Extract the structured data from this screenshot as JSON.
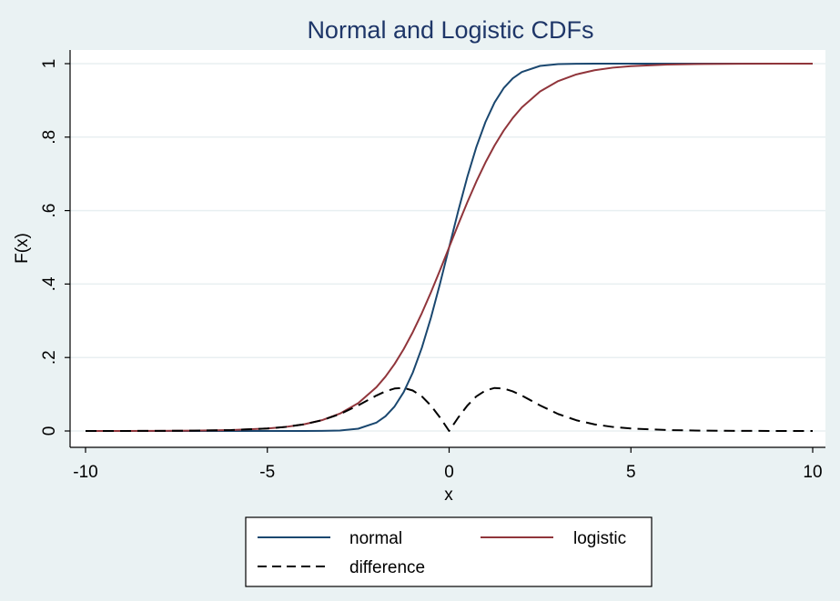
{
  "chart_data": {
    "type": "line",
    "title": "Normal and Logistic CDFs",
    "xlabel": "x",
    "ylabel": "F(x)",
    "xlim": [
      -10,
      10
    ],
    "ylim": [
      0,
      1
    ],
    "x_ticks": [
      -10,
      -5,
      0,
      5,
      10
    ],
    "x_tick_labels": [
      "-10",
      "-5",
      "0",
      "5",
      "10"
    ],
    "y_ticks": [
      0,
      0.2,
      0.4,
      0.6,
      0.8,
      1
    ],
    "y_tick_labels": [
      "0",
      ".2",
      ".4",
      ".6",
      ".8",
      "1"
    ],
    "grid": true,
    "legend_position": "bottom",
    "x": [
      -10,
      -9,
      -8,
      -7,
      -6,
      -5,
      -4.5,
      -4,
      -3.5,
      -3,
      -2.5,
      -2,
      -1.75,
      -1.5,
      -1.25,
      -1,
      -0.75,
      -0.5,
      -0.25,
      0,
      0.25,
      0.5,
      0.75,
      1,
      1.25,
      1.5,
      1.75,
      2,
      2.5,
      3,
      3.5,
      4,
      4.5,
      5,
      6,
      7,
      8,
      9,
      10
    ],
    "series": [
      {
        "name": "normal",
        "color": "#1a476f",
        "style": "solid",
        "values": [
          0,
          0,
          0,
          0,
          0,
          0,
          0,
          0,
          0.0002,
          0.0013,
          0.0062,
          0.0228,
          0.0401,
          0.0668,
          0.1056,
          0.1587,
          0.2266,
          0.3085,
          0.4013,
          0.5,
          0.5987,
          0.6915,
          0.7734,
          0.8413,
          0.8944,
          0.9332,
          0.9599,
          0.9772,
          0.9938,
          0.9987,
          0.9998,
          1,
          1,
          1,
          1,
          1,
          1,
          1,
          1
        ]
      },
      {
        "name": "logistic",
        "color": "#90353b",
        "style": "solid",
        "values": [
          0,
          0.0001,
          0.0003,
          0.0009,
          0.0025,
          0.0067,
          0.011,
          0.018,
          0.0293,
          0.0474,
          0.0759,
          0.1192,
          0.148,
          0.1824,
          0.2227,
          0.2689,
          0.3208,
          0.3775,
          0.4378,
          0.5,
          0.5622,
          0.6225,
          0.6792,
          0.7311,
          0.7773,
          0.8176,
          0.852,
          0.8808,
          0.9241,
          0.9526,
          0.9707,
          0.982,
          0.989,
          0.9933,
          0.9975,
          0.9991,
          0.9997,
          0.9999,
          1
        ]
      },
      {
        "name": "difference",
        "color": "#000000",
        "style": "dashed",
        "values": [
          0,
          0.0001,
          0.0003,
          0.0009,
          0.0025,
          0.0067,
          0.011,
          0.018,
          0.0291,
          0.0461,
          0.0697,
          0.0964,
          0.1079,
          0.1156,
          0.1171,
          0.1102,
          0.0942,
          0.069,
          0.0365,
          0,
          0.0365,
          0.069,
          0.0942,
          0.1102,
          0.1171,
          0.1156,
          0.1079,
          0.0964,
          0.0697,
          0.0461,
          0.0291,
          0.018,
          0.011,
          0.0067,
          0.0025,
          0.0009,
          0.0003,
          0.0001,
          0
        ]
      }
    ]
  }
}
